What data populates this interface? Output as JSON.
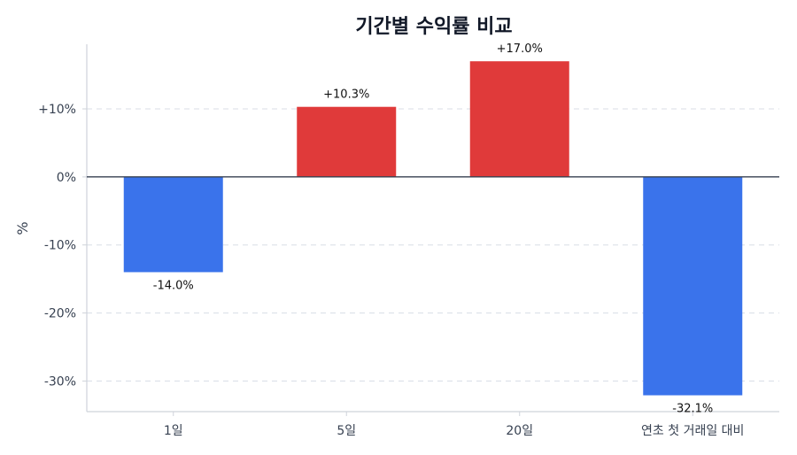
{
  "chart_data": {
    "type": "bar",
    "title": "기간별 수익률 비교",
    "xlabel": "",
    "ylabel": "%",
    "categories": [
      "1일",
      "5일",
      "20일",
      "연초 첫 거래일 대비"
    ],
    "values": [
      -14.0,
      10.3,
      17.0,
      -32.1
    ],
    "value_labels": [
      "-14.0%",
      "+10.3%",
      "+17.0%",
      "-32.1%"
    ],
    "ylim": [
      -34.5,
      19.5
    ],
    "yticks": [
      10,
      0,
      -10,
      -20,
      -30
    ],
    "ytick_labels": [
      "+10%",
      "0%",
      "-10%",
      "-20%",
      "-30%"
    ],
    "grid": true,
    "colors": {
      "positive": "#e03a3a",
      "negative": "#3a73eb",
      "zero_line": "#374151",
      "grid": "#d8dde6",
      "axis": "#cfd3da"
    }
  }
}
